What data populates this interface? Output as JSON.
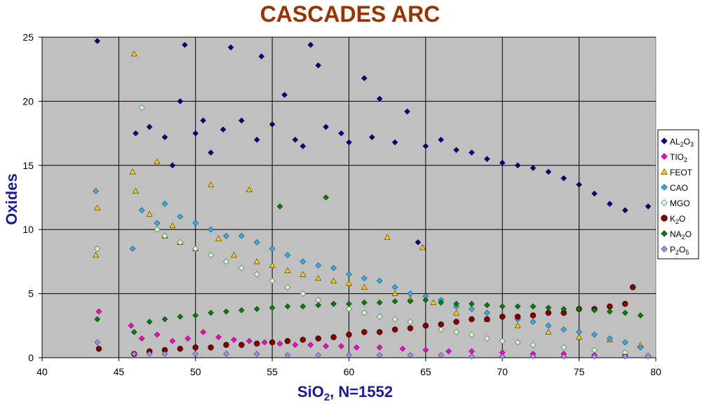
{
  "chart_data": {
    "type": "scatter",
    "title": "CASCADES ARC",
    "xlabel": {
      "main": "SiO",
      "sub": "2",
      "suffix": ", N=1552"
    },
    "ylabel": "Oxides",
    "xlim": [
      40,
      80
    ],
    "ylim": [
      0,
      25
    ],
    "xticks": [
      "40",
      "45",
      "50",
      "55",
      "60",
      "65",
      "70",
      "75",
      "80"
    ],
    "yticks": [
      "0",
      "5",
      "10",
      "15",
      "20",
      "25"
    ],
    "grid": true,
    "plot_background": "#c0c0c0",
    "legend_position": "right",
    "series": [
      {
        "name": "AL2O3",
        "label": {
          "main": "AL",
          "sub": "2",
          "rest": "O",
          "sub2": "3"
        },
        "marker": "diamond",
        "color": "#000080",
        "points": [
          [
            43.6,
            24.7
          ],
          [
            46.1,
            17.5
          ],
          [
            47.0,
            18.0
          ],
          [
            48.0,
            17.2
          ],
          [
            48.5,
            15.0
          ],
          [
            49.0,
            20.0
          ],
          [
            49.3,
            24.4
          ],
          [
            50.0,
            17.5
          ],
          [
            50.5,
            18.5
          ],
          [
            51.0,
            16.0
          ],
          [
            51.8,
            17.8
          ],
          [
            52.3,
            24.2
          ],
          [
            53.0,
            18.5
          ],
          [
            54.0,
            17.0
          ],
          [
            54.3,
            23.5
          ],
          [
            55.0,
            18.2
          ],
          [
            55.8,
            20.5
          ],
          [
            56.5,
            17.0
          ],
          [
            57.0,
            16.5
          ],
          [
            57.5,
            24.4
          ],
          [
            58.0,
            22.8
          ],
          [
            58.5,
            18.0
          ],
          [
            59.5,
            17.5
          ],
          [
            60.0,
            16.8
          ],
          [
            61.0,
            21.8
          ],
          [
            61.5,
            17.2
          ],
          [
            62.0,
            20.2
          ],
          [
            63.0,
            16.8
          ],
          [
            63.8,
            19.2
          ],
          [
            64.5,
            9.0
          ],
          [
            65.0,
            16.5
          ],
          [
            66.0,
            17.0
          ],
          [
            67.0,
            16.2
          ],
          [
            68.0,
            16.0
          ],
          [
            69.0,
            15.5
          ],
          [
            70.0,
            15.2
          ],
          [
            71.0,
            15.0
          ],
          [
            72.0,
            14.8
          ],
          [
            73.0,
            14.5
          ],
          [
            74.0,
            14.0
          ],
          [
            75.0,
            13.5
          ],
          [
            76.0,
            12.8
          ],
          [
            77.0,
            12.0
          ],
          [
            78.0,
            11.5
          ],
          [
            79.5,
            11.8
          ]
        ]
      },
      {
        "name": "TIO2",
        "label": {
          "main": "TIO",
          "sub": "2",
          "rest": "",
          "sub2": ""
        },
        "marker": "diamond",
        "color": "#ff00cc",
        "points": [
          [
            43.7,
            3.6
          ],
          [
            45.8,
            2.5
          ],
          [
            46.5,
            1.5
          ],
          [
            47.5,
            1.8
          ],
          [
            48.5,
            1.3
          ],
          [
            49.5,
            1.5
          ],
          [
            50.5,
            2.0
          ],
          [
            51.5,
            1.6
          ],
          [
            52.5,
            1.4
          ],
          [
            53.5,
            1.3
          ],
          [
            54.5,
            1.2
          ],
          [
            55.5,
            1.1
          ],
          [
            56.5,
            1.0
          ],
          [
            57.5,
            1.0
          ],
          [
            58.5,
            0.9
          ],
          [
            59.5,
            0.9
          ],
          [
            60.5,
            0.8
          ],
          [
            62.0,
            0.8
          ],
          [
            63.5,
            0.7
          ],
          [
            65.0,
            0.6
          ],
          [
            66.5,
            0.5
          ],
          [
            68.0,
            0.5
          ],
          [
            70.0,
            0.4
          ],
          [
            72.0,
            0.3
          ],
          [
            74.0,
            0.3
          ],
          [
            76.0,
            0.2
          ],
          [
            78.0,
            0.2
          ]
        ]
      },
      {
        "name": "FEOT",
        "label": {
          "main": "FEOT",
          "sub": "",
          "rest": "",
          "sub2": ""
        },
        "marker": "triangle",
        "color": "#ffcc00",
        "points": [
          [
            43.6,
            11.7
          ],
          [
            43.5,
            8.0
          ],
          [
            45.9,
            14.5
          ],
          [
            46.0,
            23.7
          ],
          [
            46.1,
            13.0
          ],
          [
            47.0,
            11.2
          ],
          [
            47.5,
            15.3
          ],
          [
            48.0,
            9.5
          ],
          [
            48.5,
            10.3
          ],
          [
            49.0,
            9.0
          ],
          [
            50.0,
            8.5
          ],
          [
            51.0,
            13.5
          ],
          [
            51.5,
            9.3
          ],
          [
            52.5,
            8.0
          ],
          [
            53.5,
            13.1
          ],
          [
            54.0,
            7.5
          ],
          [
            55.0,
            7.2
          ],
          [
            56.0,
            6.8
          ],
          [
            57.0,
            6.5
          ],
          [
            58.0,
            6.2
          ],
          [
            59.0,
            6.0
          ],
          [
            60.0,
            5.8
          ],
          [
            61.0,
            5.5
          ],
          [
            62.5,
            9.4
          ],
          [
            63.0,
            5.0
          ],
          [
            64.0,
            4.6
          ],
          [
            64.8,
            8.6
          ],
          [
            65.5,
            4.3
          ],
          [
            67.0,
            3.5
          ],
          [
            69.0,
            3.0
          ],
          [
            71.0,
            2.5
          ],
          [
            73.0,
            2.0
          ],
          [
            75.0,
            1.6
          ],
          [
            77.0,
            1.4
          ],
          [
            79.0,
            1.0
          ]
        ]
      },
      {
        "name": "CAO",
        "label": {
          "main": "CAO",
          "sub": "",
          "rest": "",
          "sub2": ""
        },
        "marker": "diamond",
        "color": "#33aaee",
        "points": [
          [
            43.5,
            13.0
          ],
          [
            45.9,
            8.5
          ],
          [
            46.5,
            11.5
          ],
          [
            47.5,
            10.5
          ],
          [
            48.0,
            12.0
          ],
          [
            49.0,
            11.0
          ],
          [
            50.0,
            10.5
          ],
          [
            51.0,
            10.0
          ],
          [
            52.0,
            9.5
          ],
          [
            53.0,
            9.5
          ],
          [
            54.0,
            9.0
          ],
          [
            55.0,
            8.5
          ],
          [
            56.0,
            8.0
          ],
          [
            57.0,
            7.5
          ],
          [
            58.0,
            7.2
          ],
          [
            59.0,
            7.0
          ],
          [
            60.0,
            6.5
          ],
          [
            61.0,
            6.2
          ],
          [
            62.0,
            6.0
          ],
          [
            63.0,
            5.5
          ],
          [
            64.0,
            5.0
          ],
          [
            65.0,
            4.8
          ],
          [
            66.0,
            4.5
          ],
          [
            67.0,
            4.0
          ],
          [
            68.0,
            3.8
          ],
          [
            69.0,
            3.5
          ],
          [
            70.0,
            3.2
          ],
          [
            71.0,
            3.0
          ],
          [
            72.0,
            2.8
          ],
          [
            73.0,
            2.5
          ],
          [
            74.0,
            2.2
          ],
          [
            75.0,
            2.0
          ],
          [
            76.0,
            1.8
          ],
          [
            77.0,
            1.5
          ],
          [
            78.0,
            1.2
          ],
          [
            79.0,
            0.8
          ]
        ]
      },
      {
        "name": "MGO",
        "label": {
          "main": "MGO",
          "sub": "",
          "rest": "",
          "sub2": ""
        },
        "marker": "diamond",
        "color": "#ccffcc",
        "points": [
          [
            43.6,
            8.5
          ],
          [
            46.5,
            19.5
          ],
          [
            47.5,
            10.0
          ],
          [
            48.0,
            9.5
          ],
          [
            49.0,
            9.0
          ],
          [
            50.0,
            8.5
          ],
          [
            51.0,
            8.0
          ],
          [
            52.0,
            7.5
          ],
          [
            53.0,
            7.0
          ],
          [
            54.0,
            6.5
          ],
          [
            55.0,
            6.0
          ],
          [
            56.0,
            5.5
          ],
          [
            57.0,
            5.0
          ],
          [
            58.0,
            4.5
          ],
          [
            59.0,
            4.2
          ],
          [
            60.0,
            3.8
          ],
          [
            61.0,
            3.5
          ],
          [
            62.0,
            3.2
          ],
          [
            63.0,
            3.0
          ],
          [
            64.0,
            2.8
          ],
          [
            65.0,
            2.5
          ],
          [
            66.0,
            2.2
          ],
          [
            67.0,
            2.0
          ],
          [
            68.0,
            1.8
          ],
          [
            69.0,
            1.5
          ],
          [
            70.0,
            1.3
          ],
          [
            71.0,
            1.2
          ],
          [
            72.0,
            1.0
          ],
          [
            74.0,
            0.8
          ],
          [
            76.0,
            0.6
          ],
          [
            78.0,
            0.4
          ],
          [
            79.5,
            0.2
          ]
        ]
      },
      {
        "name": "K2O",
        "label": {
          "main": "K",
          "sub": "2",
          "rest": "O",
          "sub2": ""
        },
        "marker": "circle",
        "color": "#800000",
        "points": [
          [
            43.7,
            0.7
          ],
          [
            46.0,
            0.3
          ],
          [
            47.0,
            0.5
          ],
          [
            48.0,
            0.6
          ],
          [
            49.0,
            0.7
          ],
          [
            50.0,
            0.8
          ],
          [
            51.0,
            0.8
          ],
          [
            52.0,
            1.0
          ],
          [
            53.0,
            1.0
          ],
          [
            54.0,
            1.1
          ],
          [
            55.0,
            1.2
          ],
          [
            56.0,
            1.3
          ],
          [
            57.0,
            1.4
          ],
          [
            58.0,
            1.5
          ],
          [
            59.0,
            1.6
          ],
          [
            60.0,
            1.8
          ],
          [
            61.0,
            2.0
          ],
          [
            62.0,
            2.0
          ],
          [
            63.0,
            2.2
          ],
          [
            64.0,
            2.3
          ],
          [
            65.0,
            2.5
          ],
          [
            66.0,
            2.6
          ],
          [
            67.0,
            2.8
          ],
          [
            68.0,
            3.0
          ],
          [
            69.0,
            3.0
          ],
          [
            70.0,
            3.2
          ],
          [
            71.0,
            3.2
          ],
          [
            72.0,
            3.3
          ],
          [
            73.0,
            3.5
          ],
          [
            74.0,
            3.5
          ],
          [
            75.0,
            3.8
          ],
          [
            76.0,
            3.8
          ],
          [
            77.0,
            4.0
          ],
          [
            78.0,
            4.2
          ],
          [
            78.5,
            5.5
          ]
        ]
      },
      {
        "name": "NA2O",
        "label": {
          "main": "NA",
          "sub": "2",
          "rest": "O",
          "sub2": ""
        },
        "marker": "diamond",
        "color": "#008000",
        "points": [
          [
            43.6,
            3.0
          ],
          [
            46.0,
            2.0
          ],
          [
            47.0,
            2.8
          ],
          [
            48.0,
            3.0
          ],
          [
            49.0,
            3.2
          ],
          [
            50.0,
            3.3
          ],
          [
            51.0,
            3.5
          ],
          [
            52.0,
            3.6
          ],
          [
            53.0,
            3.7
          ],
          [
            54.0,
            3.8
          ],
          [
            55.0,
            3.9
          ],
          [
            55.5,
            11.8
          ],
          [
            56.0,
            4.0
          ],
          [
            57.0,
            4.0
          ],
          [
            58.0,
            4.1
          ],
          [
            58.5,
            12.5
          ],
          [
            59.0,
            4.2
          ],
          [
            60.0,
            4.2
          ],
          [
            61.0,
            4.3
          ],
          [
            62.0,
            4.3
          ],
          [
            63.0,
            4.4
          ],
          [
            64.0,
            4.4
          ],
          [
            65.0,
            4.5
          ],
          [
            66.0,
            4.3
          ],
          [
            67.0,
            4.2
          ],
          [
            68.0,
            4.2
          ],
          [
            69.0,
            4.1
          ],
          [
            70.0,
            4.0
          ],
          [
            71.0,
            4.0
          ],
          [
            72.0,
            4.0
          ],
          [
            73.0,
            3.9
          ],
          [
            74.0,
            3.8
          ],
          [
            75.0,
            3.8
          ],
          [
            76.0,
            3.7
          ],
          [
            77.0,
            3.6
          ],
          [
            78.0,
            3.5
          ],
          [
            79.0,
            3.3
          ]
        ]
      },
      {
        "name": "P2O5",
        "label": {
          "main": "P",
          "sub": "2",
          "rest": "O",
          "sub2": "5"
        },
        "marker": "diamond",
        "color": "#aa88ee",
        "points": [
          [
            43.6,
            1.2
          ],
          [
            46.0,
            0.3
          ],
          [
            47.0,
            0.3
          ],
          [
            48.0,
            0.3
          ],
          [
            50.0,
            0.3
          ],
          [
            52.0,
            0.3
          ],
          [
            54.0,
            0.3
          ],
          [
            56.0,
            0.2
          ],
          [
            58.0,
            0.2
          ],
          [
            60.0,
            0.2
          ],
          [
            62.0,
            0.2
          ],
          [
            64.0,
            0.2
          ],
          [
            66.0,
            0.2
          ],
          [
            68.0,
            0.1
          ],
          [
            70.0,
            0.1
          ],
          [
            72.0,
            0.1
          ],
          [
            74.0,
            0.1
          ],
          [
            76.0,
            0.1
          ],
          [
            78.0,
            0.1
          ],
          [
            79.5,
            0.1
          ]
        ]
      }
    ]
  }
}
